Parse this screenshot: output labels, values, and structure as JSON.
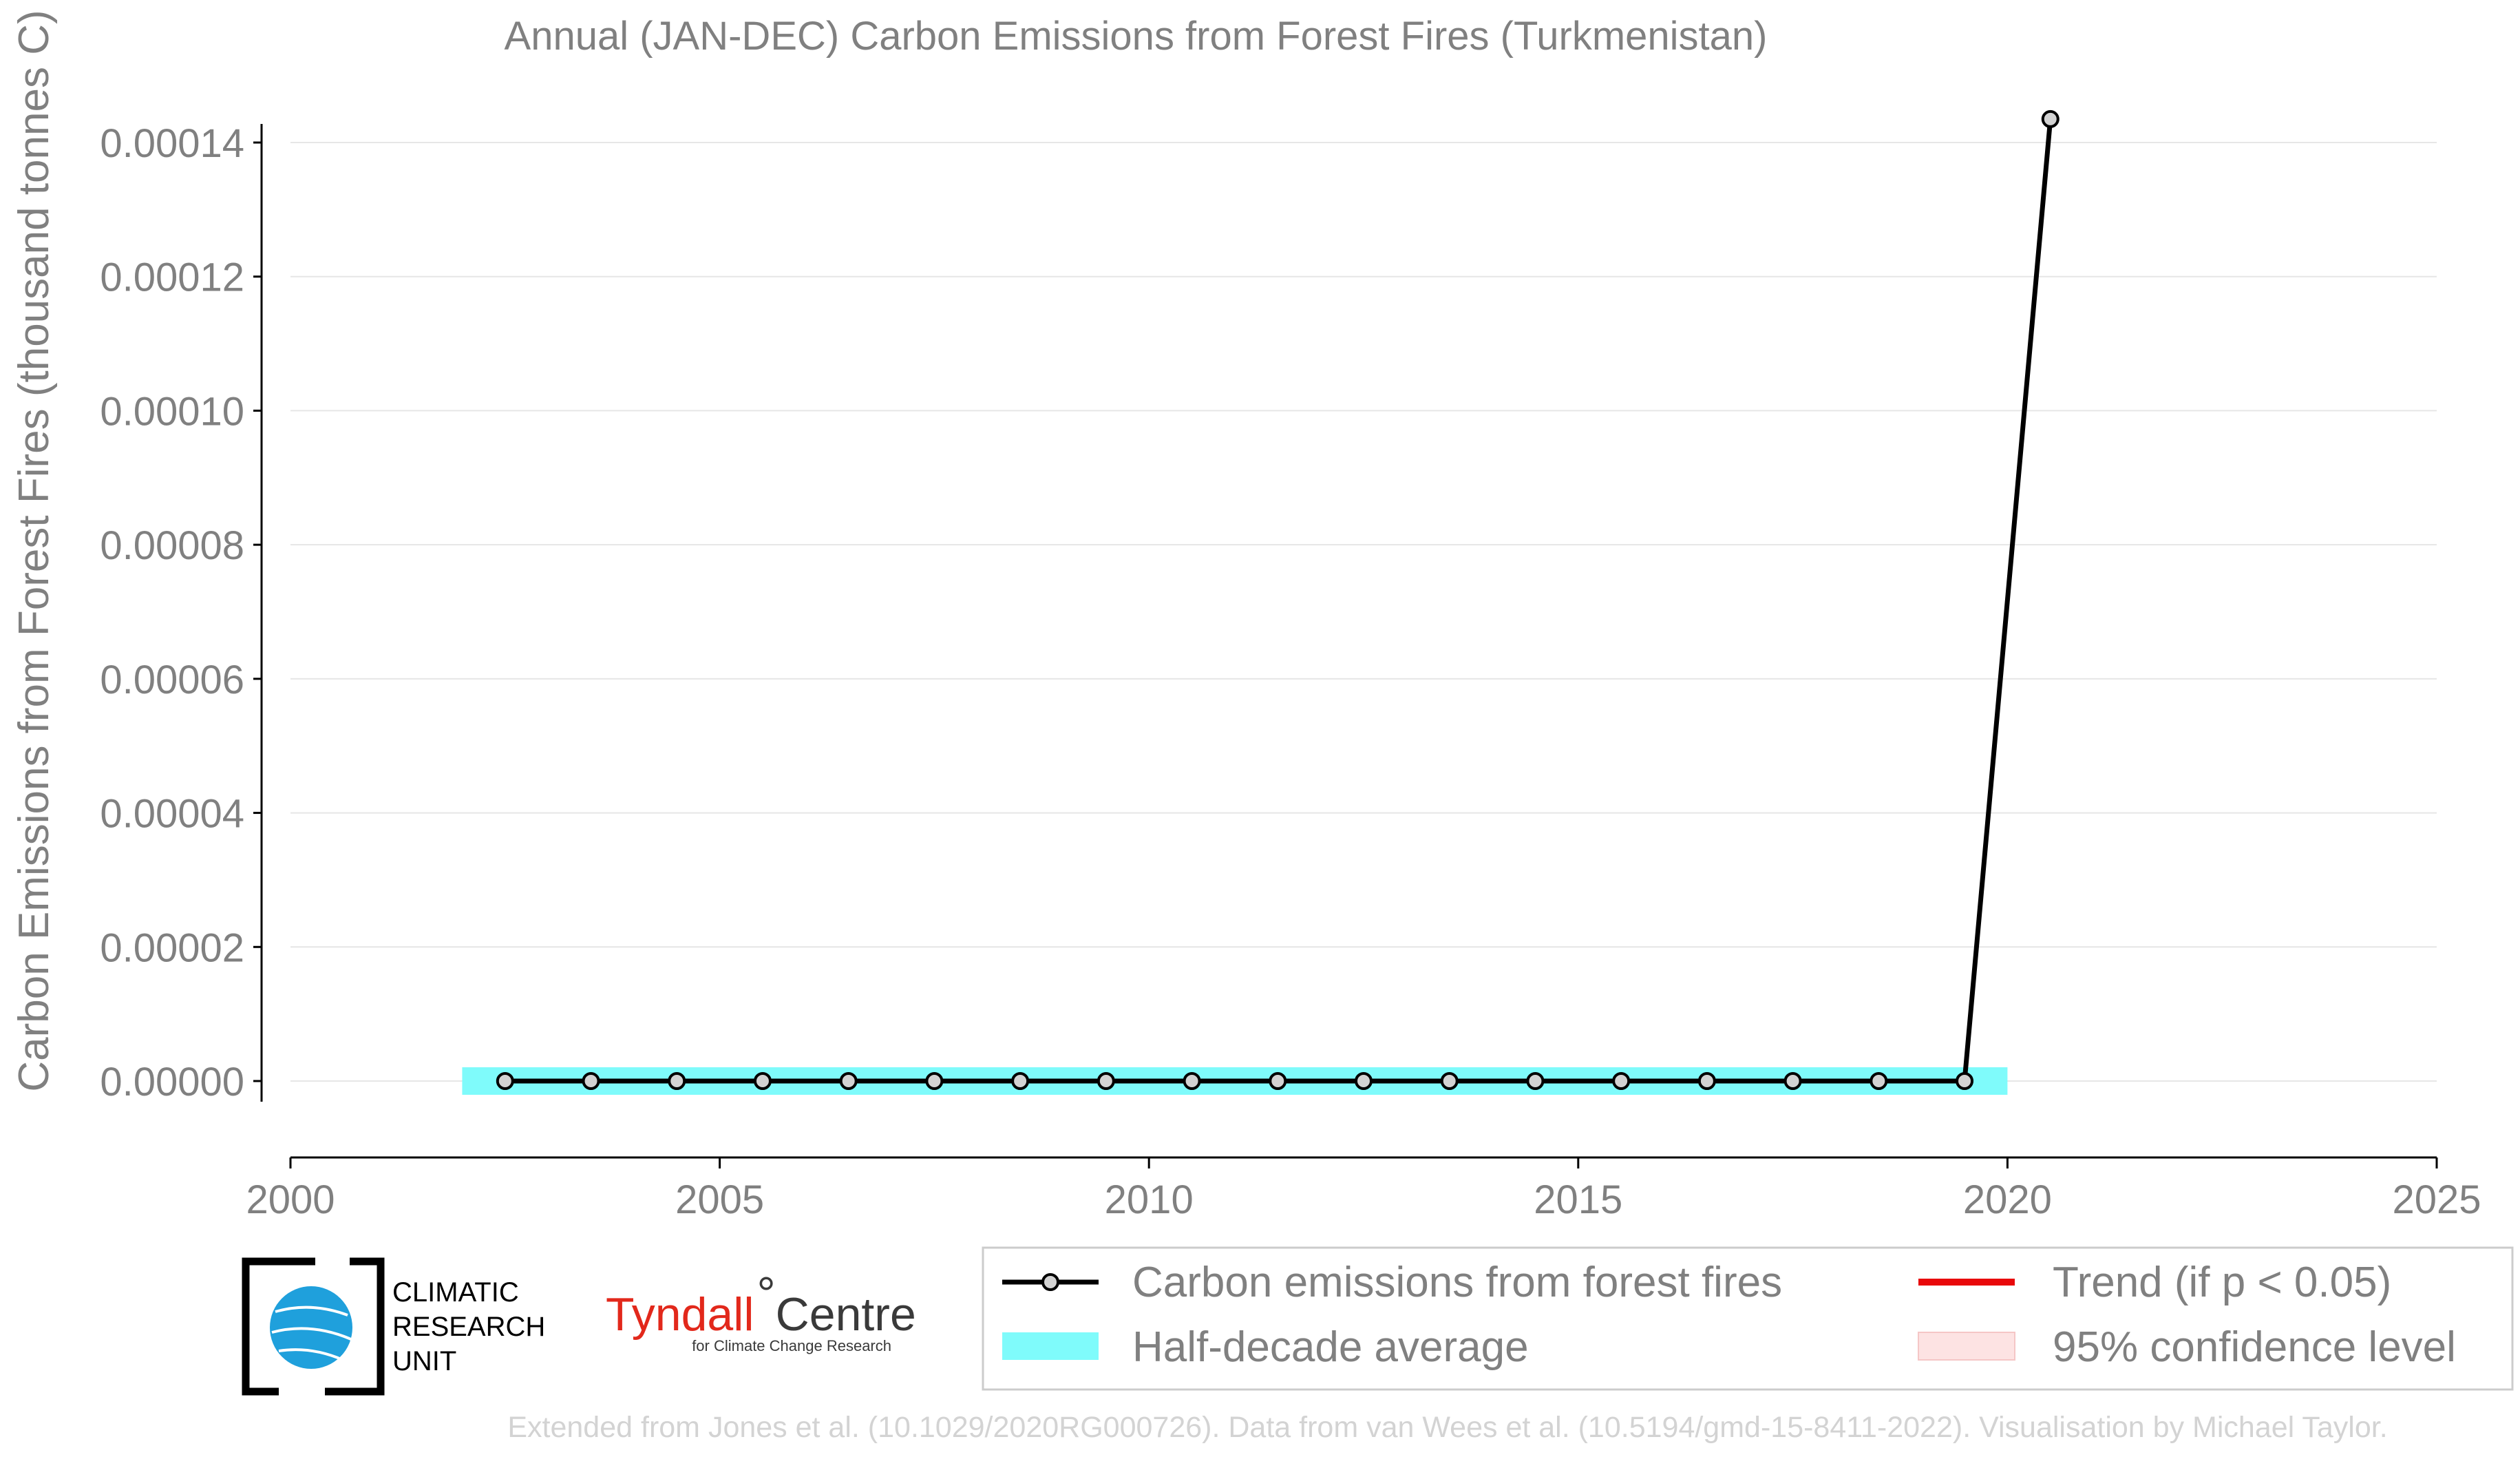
{
  "chart_data": {
    "type": "line",
    "title": "Annual (JAN-DEC) Carbon Emissions from Forest Fires (Turkmenistan)",
    "xlabel": "",
    "ylabel": "Carbon Emissions from Forest Fires (thousand tonnes C)",
    "xlim": [
      2000,
      2025
    ],
    "ylim": [
      -1e-05,
      0.000145
    ],
    "xticks": [
      2000,
      2005,
      2010,
      2015,
      2020,
      2025
    ],
    "xtick_labels": [
      "2000",
      "2005",
      "2010",
      "2015",
      "2020",
      "2025"
    ],
    "yticks": [
      0,
      2e-05,
      4e-05,
      6e-05,
      8e-05,
      0.0001,
      0.00012,
      0.00014
    ],
    "ytick_labels": [
      "0.00000",
      "0.00002",
      "0.00004",
      "0.00006",
      "0.00008",
      "0.00010",
      "0.00012",
      "0.00014"
    ],
    "grid": "horizontal",
    "series": [
      {
        "name": "Carbon emissions from forest fires",
        "color": "#000000",
        "marker_fill": "#d3d3d3",
        "x": [
          2002.5,
          2003.5,
          2004.5,
          2005.5,
          2006.5,
          2007.5,
          2008.5,
          2009.5,
          2010.5,
          2011.5,
          2012.5,
          2013.5,
          2014.5,
          2015.5,
          2016.5,
          2017.5,
          2018.5,
          2019.5,
          2020.5
        ],
        "y": [
          0,
          0,
          0,
          0,
          0,
          0,
          0,
          0,
          0,
          0,
          0,
          0,
          0,
          0,
          0,
          0,
          0,
          0,
          0.0001435
        ]
      }
    ],
    "half_decade_average": {
      "name": "Half-decade average",
      "color": "#7ffbfb",
      "x_start": 2002,
      "x_end": 2020,
      "y": 0
    },
    "legend": {
      "placement": "bottom-right",
      "entries": [
        {
          "label": "Carbon emissions from forest fires",
          "kind": "line-marker",
          "color": "#000000"
        },
        {
          "label": "Trend (if p < 0.05)",
          "kind": "line",
          "color": "#e8080b"
        },
        {
          "label": "Half-decade average",
          "kind": "patch",
          "color": "#7ffbfb"
        },
        {
          "label": "95% confidence level",
          "kind": "patch",
          "color": "#fde3e3"
        }
      ]
    }
  },
  "logos": {
    "cru_lines": [
      "CLIMATIC",
      "RESEARCH",
      "UNIT"
    ],
    "tyndall_main_red": "Tyndall",
    "tyndall_main_dark": "Centre",
    "tyndall_sub": "for Climate Change Research"
  },
  "footer": "Extended from Jones et al. (10.1029/2020RG000726). Data from van Wees et al. (10.5194/gmd-15-8411-2022). Visualisation by Michael Taylor."
}
